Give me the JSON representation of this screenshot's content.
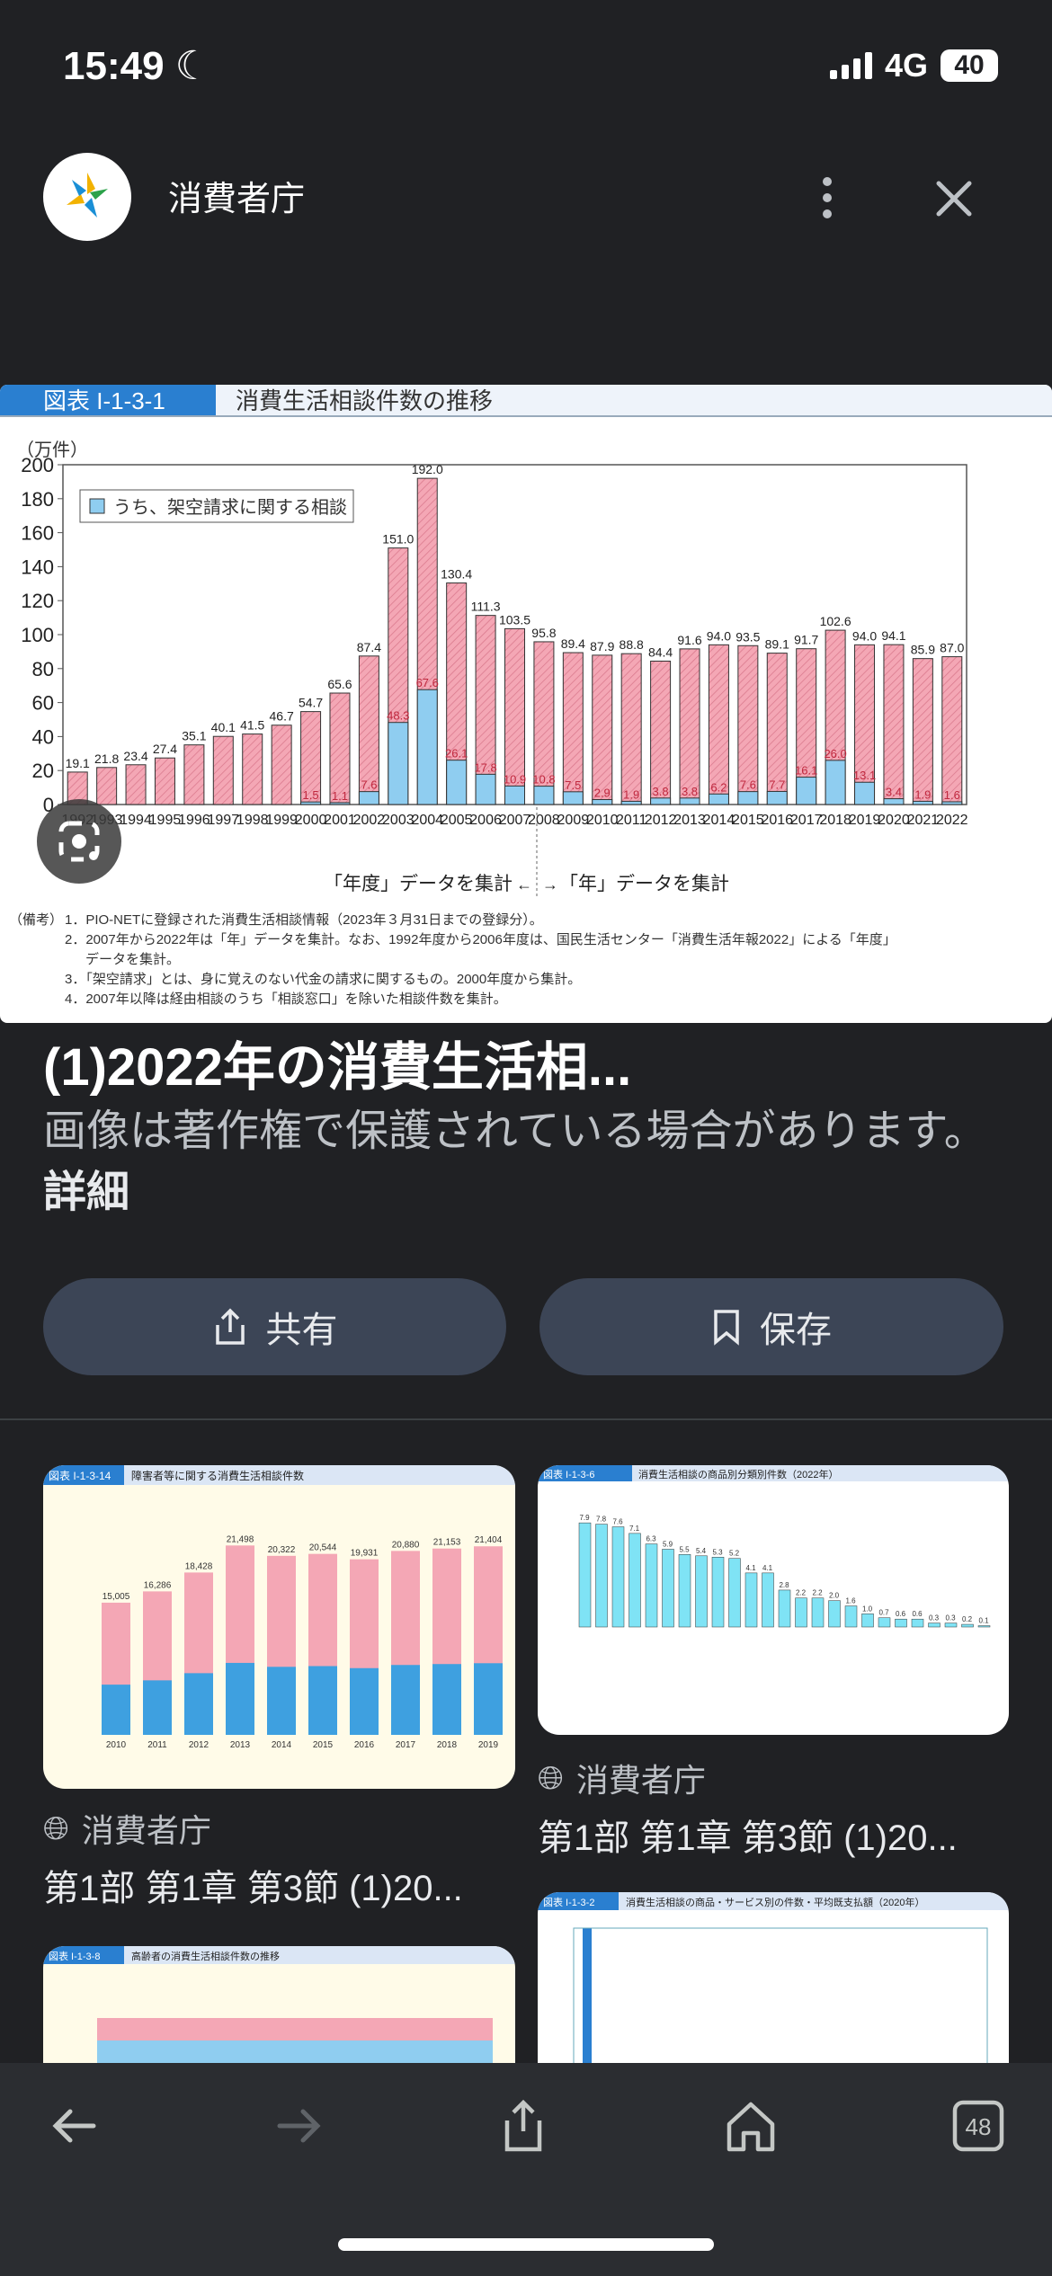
{
  "status_bar": {
    "time": "15:49",
    "network": "4G",
    "battery": "40",
    "icons": [
      "moon-icon",
      "signal-icon",
      "battery-icon"
    ]
  },
  "header": {
    "site_name": "消費者庁",
    "icons": [
      "more-vert-icon",
      "close-icon"
    ]
  },
  "main_image": {
    "figure_label": "図表 I-1-3-1",
    "figure_title": "消費生活相談件数の推移",
    "legend": "うち、架空請求に関する相談",
    "unit": "（万件）",
    "period_note_left": "「年度」データを集計",
    "period_note_right": "「年」データを集計",
    "notes_label": "（備考）",
    "notes": [
      "1．PIO-NETに登録された消費生活相談情報（2023年３月31日までの登録分）。",
      "2．2007年から2022年は「年」データを集計。なお、1992年度から2006年度は、国民生活センター「消費生活年報2022」による「年度」",
      "データを集計。",
      "3．「架空請求」とは、身に覚えのない代金の請求に関するもの。2000年度から集計。",
      "4．2007年以降は経由相談のうち「相談窓口」を除いた相談件数を集計。"
    ]
  },
  "chart_data": {
    "type": "bar",
    "title": "消費生活相談件数の推移",
    "ylabel": "（万件）",
    "ylim": [
      0,
      200
    ],
    "yticks": [
      0,
      20,
      40,
      60,
      80,
      100,
      120,
      140,
      160,
      180,
      200
    ],
    "legend_placement": "top-left",
    "categories": [
      "1992",
      "1993",
      "1994",
      "1995",
      "1996",
      "1997",
      "1998",
      "1999",
      "2000",
      "2001",
      "2002",
      "2003",
      "2004",
      "2005",
      "2006",
      "2007",
      "2008",
      "2009",
      "2010",
      "2011",
      "2012",
      "2013",
      "2014",
      "2015",
      "2016",
      "2017",
      "2018",
      "2019",
      "2020",
      "2021",
      "2022"
    ],
    "series": [
      {
        "values": [
          19.1,
          21.8,
          23.4,
          27.4,
          35.1,
          40.1,
          41.5,
          46.7,
          54.7,
          65.6,
          87.4,
          151.0,
          192.0,
          130.4,
          111.3,
          103.5,
          95.8,
          89.4,
          87.9,
          88.8,
          84.4,
          91.6,
          94.0,
          93.5,
          89.1,
          91.7,
          102.6,
          94.0,
          94.1,
          85.9,
          87.0
        ],
        "color": "#f4a7b5"
      },
      {
        "name": "うち、架空請求に関する相談",
        "values": [
          null,
          null,
          null,
          null,
          null,
          null,
          null,
          null,
          1.5,
          1.1,
          7.6,
          48.3,
          67.6,
          26.1,
          17.8,
          10.9,
          10.8,
          7.5,
          2.9,
          1.9,
          3.8,
          3.8,
          6.2,
          7.6,
          7.7,
          16.1,
          26.0,
          13.1,
          3.4,
          1.9,
          1.6
        ],
        "color": "#8fcdf0"
      }
    ]
  },
  "result": {
    "title": "(1)2022年の消費生活相...",
    "copyright": "画像は著作権で保護されている場合があります。",
    "details_link": "詳細",
    "share_label": "共有",
    "save_label": "保存"
  },
  "related": [
    {
      "source": "消費者庁",
      "caption": "第1部 第1章 第3節 (1)20...",
      "figure_label": "図表 I-1-3-14",
      "figure_title": "障害者等に関する消費生活相談件数",
      "values": [
        15005,
        16286,
        18428,
        21498,
        20322,
        20544,
        19931,
        20880,
        21153,
        21404
      ],
      "categories": [
        "2010",
        "2011",
        "2012",
        "2013",
        "2014",
        "2015",
        "2016",
        "2017",
        "2018",
        "2019"
      ]
    },
    {
      "source": "消費者庁",
      "caption": "第1部 第1章 第3節 (1)20...",
      "figure_label": "図表 I-1-3-6",
      "figure_title": "消費生活相談の商品別分類別件数（2022年）",
      "values": [
        7.9,
        7.8,
        7.6,
        7.1,
        6.3,
        5.9,
        5.5,
        5.4,
        5.3,
        5.2,
        4.1,
        4.1,
        2.8,
        2.2,
        2.2,
        2.0,
        1.6,
        1.0,
        0.7,
        0.6,
        0.6,
        0.3,
        0.3,
        0.2,
        0.1
      ]
    },
    {
      "figure_label": "図表 I-1-3-8",
      "figure_title": "高齢者の消費生活相談件数の推移"
    },
    {
      "figure_label": "図表 I-1-3-2",
      "figure_title": "消費生活相談の商品・サービス別の件数・平均既支払額（2020年）"
    }
  ],
  "bottom_nav": {
    "tab_count": "48",
    "icons": [
      "back-icon",
      "forward-icon",
      "share-icon",
      "home-icon",
      "tabs-icon"
    ]
  },
  "colors": {
    "background": "#202124",
    "button": "#3c4556",
    "accent_blue": "#2a7fd0"
  }
}
